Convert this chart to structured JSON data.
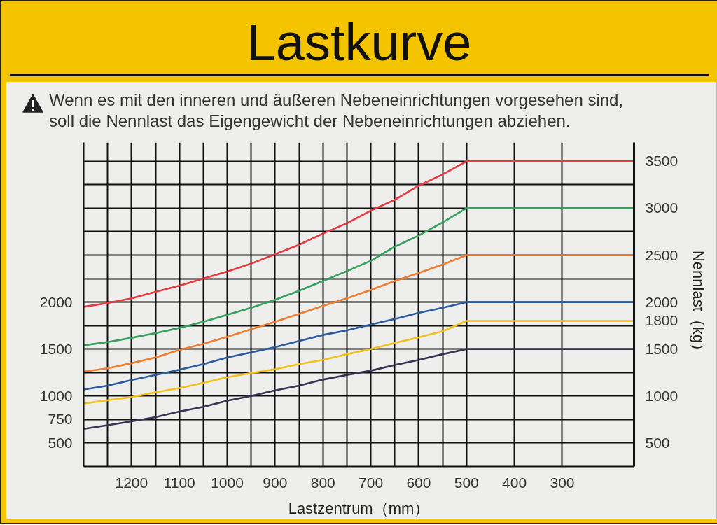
{
  "chart_data": {
    "type": "line",
    "title": "Lastkurve",
    "annotations": [
      "Wenn es mit den inneren und äußeren Nebeneinrichtungen vorgesehen sind, soll die Nennlast das Eigengewicht der Nebeneinrichtungen abziehen."
    ],
    "xlabel": "Lastzentrum（mm）",
    "y2label": "Nennlast（kg）",
    "x": [
      1300,
      1250,
      1200,
      1150,
      1100,
      1050,
      1000,
      950,
      900,
      850,
      800,
      750,
      700,
      650,
      600,
      550,
      500,
      150
    ],
    "series": [
      {
        "color": "#e53a3f",
        "values": [
          1950,
          1990,
          2040,
          2110,
          2175,
          2250,
          2325,
          2410,
          2510,
          2610,
          2730,
          2840,
          2975,
          3090,
          3240,
          3360,
          3500,
          3500
        ]
      },
      {
        "color": "#35a05c",
        "values": [
          1540,
          1575,
          1620,
          1670,
          1725,
          1790,
          1865,
          1940,
          2025,
          2120,
          2225,
          2330,
          2440,
          2590,
          2710,
          2850,
          3000,
          3000
        ]
      },
      {
        "color": "#ef7d30",
        "values": [
          1260,
          1295,
          1350,
          1410,
          1490,
          1555,
          1630,
          1710,
          1790,
          1875,
          1960,
          2040,
          2130,
          2225,
          2310,
          2400,
          2500,
          2500
        ]
      },
      {
        "color": "#2d5c9e",
        "values": [
          1070,
          1110,
          1170,
          1225,
          1280,
          1340,
          1410,
          1465,
          1520,
          1585,
          1650,
          1700,
          1760,
          1820,
          1885,
          1940,
          2000,
          2000
        ]
      },
      {
        "color": "#f2c11c",
        "values": [
          920,
          955,
          990,
          1040,
          1085,
          1140,
          1200,
          1245,
          1285,
          1340,
          1385,
          1445,
          1500,
          1565,
          1625,
          1690,
          1800,
          1800
        ]
      },
      {
        "color": "#3b3350",
        "values": [
          650,
          690,
          730,
          775,
          835,
          885,
          950,
          1000,
          1060,
          1110,
          1175,
          1225,
          1270,
          1330,
          1385,
          1445,
          1500,
          1500
        ]
      }
    ],
    "xlim": [
      1300,
      150
    ],
    "xticks": [
      {
        "value": 1300,
        "label": null
      },
      {
        "value": 1250,
        "label": null
      },
      1200,
      {
        "value": 1150,
        "label": null
      },
      1100,
      {
        "value": 1050,
        "label": null
      },
      1000,
      {
        "value": 950,
        "label": null
      },
      900,
      {
        "value": 850,
        "label": null
      },
      800,
      {
        "value": 750,
        "label": null
      },
      700,
      {
        "value": 650,
        "label": null
      },
      600,
      {
        "value": 550,
        "label": null
      },
      500,
      400,
      300
    ],
    "ylim": [
      250,
      3700
    ],
    "yticks": [
      {
        "value": 250,
        "label": null
      },
      500,
      750,
      1000,
      {
        "value": 1250,
        "label": null
      },
      1500,
      {
        "value": 1750,
        "label": null
      },
      2000,
      {
        "value": 2250,
        "label": null
      },
      {
        "value": 2500,
        "label": null
      },
      {
        "value": 2750,
        "label": null
      },
      {
        "value": 3000,
        "label": null
      },
      {
        "value": 3250,
        "label": null
      },
      {
        "value": 3500,
        "label": null
      }
    ],
    "y2lim": [
      250,
      3700
    ],
    "y2ticks": [
      500,
      1000,
      1500,
      1800,
      2000,
      2500,
      3000,
      3500
    ],
    "grid": true
  }
}
